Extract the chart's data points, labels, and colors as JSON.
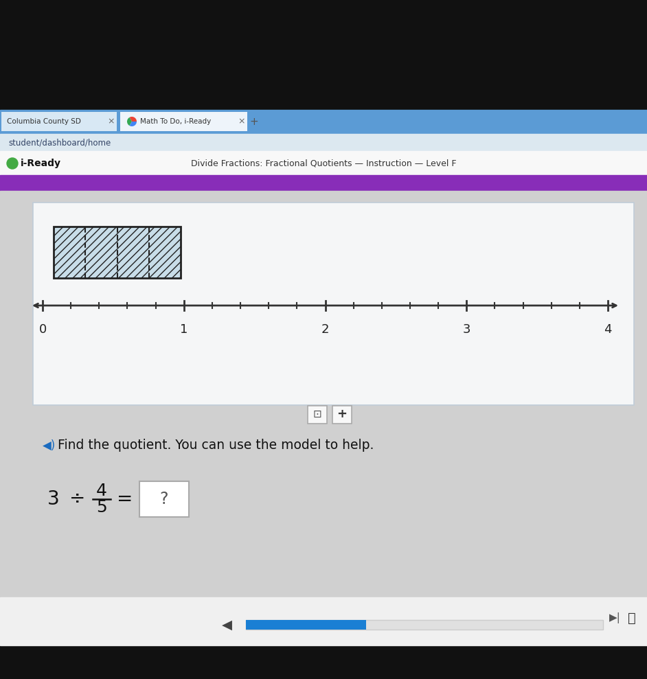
{
  "bg_outer": "#111111",
  "browser_bar_color": "#5b9bd5",
  "tab_bar_color": "#a8c8e8",
  "tab1_text": "Columbia County SD",
  "tab2_text": "Math To Do, i-Ready",
  "url_bar_color": "#dce8f0",
  "url_text": "student/dashboard/home",
  "header_bg": "#f8f8f8",
  "iready_text": "● i-Ready",
  "page_title": "Divide Fractions: Fractional Quotients — Instruction — Level F",
  "purple_color": "#882db8",
  "content_panel_bg": "#f2f2f2",
  "content_panel_border": "#c0ccd8",
  "main_bg": "#d0d0d0",
  "number_line_labels": [
    "0",
    "1",
    "2",
    "3",
    "4"
  ],
  "hatch_color": "#c8dde8",
  "question_text": "Find the quotient. You can use the model to help.",
  "speaker_color": "#1a6bbf",
  "answer_box_color": "#ffffff",
  "progress_bar_color": "#1a7fd4",
  "progress_track_color": "#e8e8e8",
  "bottom_bar_bg": "#f0f0f0"
}
